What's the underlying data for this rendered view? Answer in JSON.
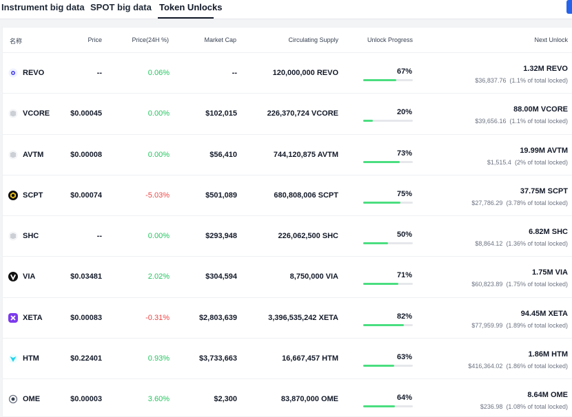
{
  "tabs": [
    {
      "label": "Instrument big data"
    },
    {
      "label": "SPOT big data"
    },
    {
      "label": "Token Unlocks"
    }
  ],
  "table": {
    "headers": {
      "name": "名称",
      "price": "Price",
      "change": "Price(24H %)",
      "market_cap": "Market Cap",
      "supply": "Circulating Supply",
      "progress": "Unlock Progress",
      "next": "Next Unlock"
    },
    "rows": [
      {
        "name": "REVO",
        "icon": "revo-icon",
        "price": "--",
        "change": "0.06%",
        "change_dir": "pos",
        "market_cap": "--",
        "supply": "120,000,000 REVO",
        "progress": 0.67,
        "progress_label": "67%",
        "next_amount": "1.32M REVO",
        "next_value": "$36,837.76",
        "next_share": "(1.1% of total locked)"
      },
      {
        "name": "VCORE",
        "icon": "vcore-icon",
        "price": "$0.00045",
        "change": "0.00%",
        "change_dir": "pos",
        "market_cap": "$102,015",
        "supply": "226,370,724 VCORE",
        "progress": 0.2,
        "progress_label": "20%",
        "next_amount": "88.00M VCORE",
        "next_value": "$39,656.16",
        "next_share": "(1.1% of total locked)"
      },
      {
        "name": "AVTM",
        "icon": "avtm-icon",
        "price": "$0.00008",
        "change": "0.00%",
        "change_dir": "pos",
        "market_cap": "$56,410",
        "supply": "744,120,875 AVTM",
        "progress": 0.73,
        "progress_label": "73%",
        "next_amount": "19.99M AVTM",
        "next_value": "$1,515.4",
        "next_share": "(2% of total locked)"
      },
      {
        "name": "SCPT",
        "icon": "scpt-icon",
        "price": "$0.00074",
        "change": "-5.03%",
        "change_dir": "neg",
        "market_cap": "$501,089",
        "supply": "680,808,006 SCPT",
        "progress": 0.75,
        "progress_label": "75%",
        "next_amount": "37.75M SCPT",
        "next_value": "$27,786.29",
        "next_share": "(3.78% of total locked)"
      },
      {
        "name": "SHC",
        "icon": "shc-icon",
        "price": "--",
        "change": "0.00%",
        "change_dir": "pos",
        "market_cap": "$293,948",
        "supply": "226,062,500 SHC",
        "progress": 0.5,
        "progress_label": "50%",
        "next_amount": "6.82M SHC",
        "next_value": "$8,864.12",
        "next_share": "(1.36% of total locked)"
      },
      {
        "name": "VIA",
        "icon": "via-icon",
        "price": "$0.03481",
        "change": "2.02%",
        "change_dir": "pos",
        "market_cap": "$304,594",
        "supply": "8,750,000 VIA",
        "progress": 0.71,
        "progress_label": "71%",
        "next_amount": "1.75M VIA",
        "next_value": "$60,823.89",
        "next_share": "(1.75% of total locked)"
      },
      {
        "name": "XETA",
        "icon": "xeta-icon",
        "price": "$0.00083",
        "change": "-0.31%",
        "change_dir": "neg",
        "market_cap": "$2,803,639",
        "supply": "3,396,535,242 XETA",
        "progress": 0.82,
        "progress_label": "82%",
        "next_amount": "94.45M XETA",
        "next_value": "$77,959.99",
        "next_share": "(1.89% of total locked)"
      },
      {
        "name": "HTM",
        "icon": "htm-icon",
        "price": "$0.22401",
        "change": "0.93%",
        "change_dir": "pos",
        "market_cap": "$3,733,663",
        "supply": "16,667,457 HTM",
        "progress": 0.63,
        "progress_label": "63%",
        "next_amount": "1.86M HTM",
        "next_value": "$416,364.02",
        "next_share": "(1.86% of total locked)"
      },
      {
        "name": "OME",
        "icon": "ome-icon",
        "price": "$0.00003",
        "change": "3.60%",
        "change_dir": "pos",
        "market_cap": "$2,300",
        "supply": "83,870,000 OME",
        "progress": 0.64,
        "progress_label": "64%",
        "next_amount": "8.64M OME",
        "next_value": "$236.98",
        "next_share": "(1.08% of total locked)"
      }
    ]
  },
  "colors": {
    "positive": "#22c55e",
    "negative": "#ef4444",
    "progress_fill": "#4ade80",
    "accent": "#2563eb"
  }
}
